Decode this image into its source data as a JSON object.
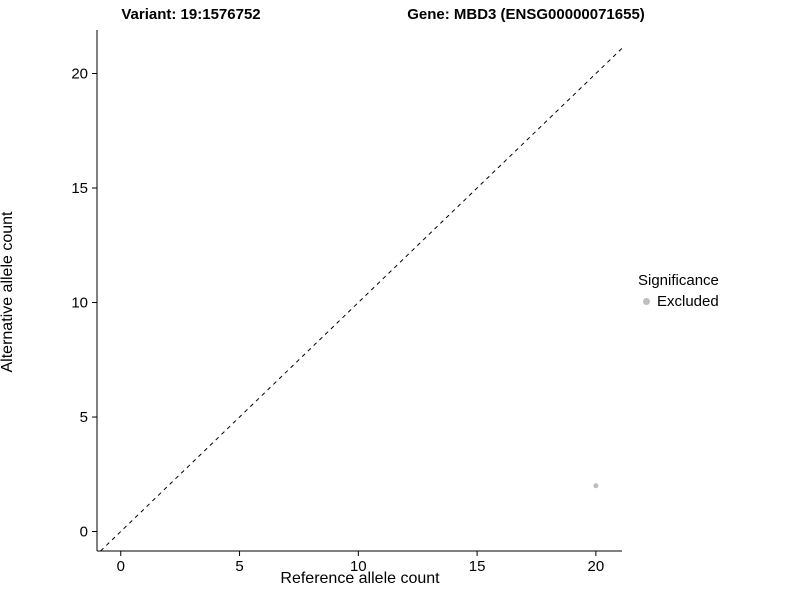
{
  "chart_data": {
    "type": "scatter",
    "title_left": "Variant: 19:1576752",
    "title_right": "Gene: MBD3 (ENSG00000071655)",
    "xlabel": "Reference allele count",
    "ylabel": "Alternative allele count",
    "xlim": [
      -1.0,
      21.1
    ],
    "ylim": [
      -0.85,
      21.9
    ],
    "xticks": [
      0,
      5,
      10,
      15,
      20
    ],
    "yticks": [
      0,
      5,
      10,
      15,
      20
    ],
    "grid": false,
    "identity_line": {
      "style": "dashed",
      "color": "#000000",
      "slope": 1,
      "intercept": 0
    },
    "series": [
      {
        "name": "Excluded",
        "color": "#bebebe",
        "points": [
          {
            "x": 20,
            "y": 2
          }
        ]
      }
    ],
    "legend": {
      "title": "Significance",
      "position": "right",
      "entries": [
        {
          "label": "Excluded",
          "color": "#bebebe"
        }
      ]
    }
  },
  "colors": {
    "axis": "#000000",
    "text": "#000000",
    "point": "#bebebe",
    "background": "#ffffff"
  }
}
